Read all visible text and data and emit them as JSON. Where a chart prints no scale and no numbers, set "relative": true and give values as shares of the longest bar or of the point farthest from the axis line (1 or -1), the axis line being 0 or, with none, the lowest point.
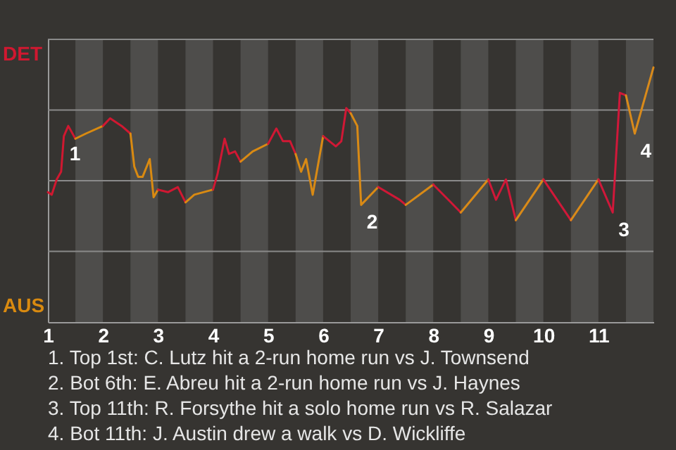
{
  "chart_data": {
    "type": "line",
    "relative": true,
    "xlim": [
      1,
      12
    ],
    "xticks": [
      1,
      2,
      3,
      4,
      5,
      6,
      7,
      8,
      9,
      10,
      11
    ],
    "grid": true,
    "bands": [
      {
        "axis": "x",
        "from": 1.5,
        "to": 2,
        "color": "#4e4d4b"
      },
      {
        "axis": "x",
        "from": 2.5,
        "to": 3,
        "color": "#4e4d4b"
      },
      {
        "axis": "x",
        "from": 3.5,
        "to": 4,
        "color": "#4e4d4b"
      },
      {
        "axis": "x",
        "from": 4.5,
        "to": 5,
        "color": "#4e4d4b"
      },
      {
        "axis": "x",
        "from": 5.5,
        "to": 6,
        "color": "#4e4d4b"
      },
      {
        "axis": "x",
        "from": 6.5,
        "to": 7,
        "color": "#4e4d4b"
      },
      {
        "axis": "x",
        "from": 7.5,
        "to": 8,
        "color": "#4e4d4b"
      },
      {
        "axis": "x",
        "from": 8.5,
        "to": 9,
        "color": "#4e4d4b"
      },
      {
        "axis": "x",
        "from": 9.5,
        "to": 10,
        "color": "#4e4d4b"
      },
      {
        "axis": "x",
        "from": 10.5,
        "to": 11,
        "color": "#4e4d4b"
      },
      {
        "axis": "x",
        "from": 11.5,
        "to": 12,
        "color": "#4e4d4b"
      }
    ],
    "series": [
      {
        "name": "DET",
        "color": "#d01830",
        "x": [
          1,
          1.07,
          1.16,
          1.24,
          1.29,
          1.37,
          1.5
        ],
        "values": [
          0.51,
          0.5,
          0.56,
          0.59,
          0.73,
          0.77,
          0.72
        ]
      },
      {
        "name": "AUS",
        "color": "#d98a10",
        "x": [
          1.5,
          1.69,
          2
        ],
        "values": [
          0.72,
          0.74,
          0.77
        ]
      },
      {
        "color": "#d01831",
        "x": [
          2,
          2.13,
          2.34,
          2.5
        ],
        "values": [
          0.77,
          0.8,
          0.77,
          0.74
        ]
      },
      {
        "color": "#d98a11",
        "x": [
          2.5,
          2.57,
          2.64,
          2.72,
          2.85,
          2.92,
          3
        ],
        "values": [
          0.74,
          0.61,
          0.57,
          0.57,
          0.64,
          0.49,
          0.52
        ]
      },
      {
        "color": "#d01832",
        "x": [
          3,
          3.18,
          3.36,
          3.5
        ],
        "values": [
          0.52,
          0.51,
          0.53,
          0.47
        ]
      },
      {
        "color": "#d98a12",
        "x": [
          3.5,
          3.66,
          4
        ],
        "values": [
          0.47,
          0.5,
          0.52
        ]
      },
      {
        "color": "#d01833",
        "x": [
          4,
          4.08,
          4.21,
          4.29,
          4.4,
          4.5
        ],
        "values": [
          0.52,
          0.58,
          0.72,
          0.66,
          0.67,
          0.63
        ]
      },
      {
        "color": "#d98a13",
        "x": [
          4.5,
          4.72,
          5
        ],
        "values": [
          0.63,
          0.67,
          0.7
        ]
      },
      {
        "color": "#d01834",
        "x": [
          5,
          5.15,
          5.27,
          5.4,
          5.5
        ],
        "values": [
          0.7,
          0.76,
          0.71,
          0.71,
          0.66
        ]
      },
      {
        "color": "#d98a14",
        "x": [
          5.5,
          5.6,
          5.69,
          5.81,
          6
        ],
        "values": [
          0.66,
          0.59,
          0.64,
          0.5,
          0.73
        ]
      },
      {
        "color": "#d01835",
        "x": [
          6,
          6.23,
          6.33,
          6.42,
          6.5
        ],
        "values": [
          0.73,
          0.69,
          0.71,
          0.84,
          0.82
        ]
      },
      {
        "color": "#d98a15",
        "x": [
          6.5,
          6.62,
          6.69,
          7
        ],
        "values": [
          0.82,
          0.77,
          0.46,
          0.53
        ]
      },
      {
        "color": "#d01836",
        "x": [
          7,
          7.39,
          7.5
        ],
        "values": [
          0.53,
          0.48,
          0.46
        ]
      },
      {
        "color": "#d98a16",
        "x": [
          7.5,
          8
        ],
        "values": [
          0.46,
          0.54
        ]
      },
      {
        "color": "#d01837",
        "x": [
          8,
          8.32,
          8.5
        ],
        "values": [
          0.54,
          0.47,
          0.43
        ]
      },
      {
        "color": "#d98a17",
        "x": [
          8.5,
          9
        ],
        "values": [
          0.43,
          0.56
        ]
      },
      {
        "color": "#d01838",
        "x": [
          9,
          9.14,
          9.32,
          9.5
        ],
        "values": [
          0.56,
          0.48,
          0.56,
          0.4
        ]
      },
      {
        "color": "#d98a18",
        "x": [
          9.5,
          10
        ],
        "values": [
          0.4,
          0.56
        ]
      },
      {
        "color": "#d01839",
        "x": [
          10,
          10.5
        ],
        "values": [
          0.56,
          0.4
        ]
      },
      {
        "color": "#d98a19",
        "x": [
          10.5,
          11
        ],
        "values": [
          0.4,
          0.56
        ]
      },
      {
        "color": "#d0183a",
        "x": [
          11,
          11.26,
          11.39,
          11.5
        ],
        "values": [
          0.56,
          0.43,
          0.9,
          0.89
        ]
      },
      {
        "color": "#d98a1a",
        "x": [
          11.5,
          11.66,
          12
        ],
        "values": [
          0.89,
          0.74,
          1.0
        ]
      }
    ],
    "annotations": [
      {
        "text": "1",
        "x": 1.29,
        "y": 0.73
      },
      {
        "text": "2",
        "x": 6.69,
        "y": 0.46
      },
      {
        "text": "3",
        "x": 11.26,
        "y": 0.43
      },
      {
        "text": "4",
        "x": 11.66,
        "y": 0.74
      },
      "1. Top 1st: C. Lutz hit a 2-run home run vs J. Townsend",
      "2. Bot 6th: E. Abreu hit a 2-run home run vs J. Haynes",
      "3. Top 11th: R. Forsythe hit a solo home run vs R. Salazar",
      "4. Bot 11th: J. Austin drew a walk vs D. Wickliffe"
    ]
  }
}
